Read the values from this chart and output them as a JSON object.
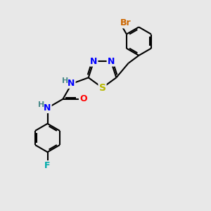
{
  "background_color": "#e8e8e8",
  "bond_color": "#000000",
  "atom_colors": {
    "N": "#0000ff",
    "S": "#b8b800",
    "O": "#ff0000",
    "F": "#00aaaa",
    "Br": "#cc6600",
    "H": "#4a8a8a",
    "C": "#000000"
  },
  "font_size": 9,
  "bond_width": 1.5
}
